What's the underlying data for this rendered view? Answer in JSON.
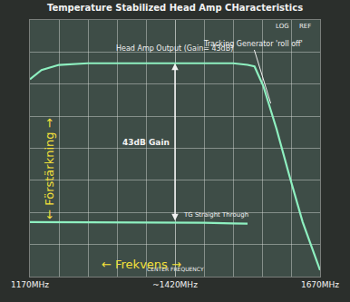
{
  "chart_data": {
    "type": "line",
    "title": "Temperature Stabilized Head Amp CHaracteristics",
    "x_label": "← Frekvens →",
    "y_label": "← Förstärkning →",
    "annotations": [
      "Head Amp Output (Gain= 43dB)",
      "43dB Gain",
      "Tracking Generator 'roll off'",
      "TG Straight Through",
      "CENTER FREQUENCY",
      "LOG",
      "REF"
    ],
    "x": [
      1170,
      1190,
      1220,
      1270,
      1320,
      1370,
      1420,
      1470,
      1520,
      1545,
      1557,
      1572,
      1595,
      1617,
      1640,
      1670
    ],
    "series": [
      {
        "name": "Head Amp Output (Gain= 43dB)",
        "color": "#8ef0c0",
        "values": [
          -18.5,
          -15.6,
          -14,
          -13.5,
          -13.5,
          -13.5,
          -13.5,
          -13.5,
          -13.5,
          -14,
          -14.5,
          -20.5,
          -34,
          -48.5,
          -63,
          -78
        ]
      },
      {
        "name": "TG Straight Through",
        "color": "#8ef0c0",
        "values": [
          -63,
          -63,
          -63,
          -63,
          -63,
          -63,
          -63,
          -63.2,
          -63.4,
          -63.5,
          null,
          null,
          null,
          null,
          null,
          null
        ]
      }
    ],
    "xlim": [
      1170,
      1670
    ],
    "xticks": [
      {
        "value": 1170,
        "label": "1170MHz"
      },
      {
        "value": 1420,
        "label": "~1420MHz"
      },
      {
        "value": 1670,
        "label": "1670MHz"
      }
    ],
    "ylim": [
      -80,
      0
    ],
    "yticks": [
      -80,
      -70,
      -60,
      -50,
      -40,
      -30,
      -20,
      -10,
      0
    ],
    "grid": true,
    "tick_labels": "x"
  }
}
